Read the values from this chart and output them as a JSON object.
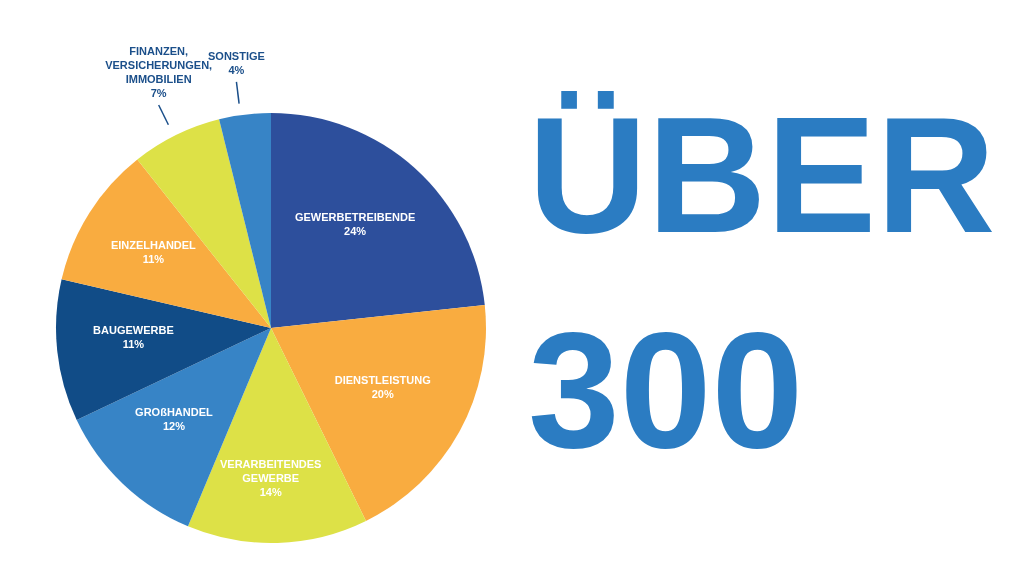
{
  "chart_data": {
    "type": "pie",
    "categories": [
      "GEWERBETREIBENDE",
      "DIENSTLEISTUNG",
      "VERARBEITENDES GEWERBE",
      "GROßHANDEL",
      "BAUGEWERBE",
      "EINZELHANDEL",
      "FINANZEN, VERSICHERUNGEN, IMMOBILIEN",
      "SONSTIGE"
    ],
    "values": [
      24,
      20,
      14,
      12,
      11,
      11,
      7,
      4
    ],
    "value_labels": [
      "24%",
      "20%",
      "14%",
      "12%",
      "11%",
      "11%",
      "7%",
      "4%"
    ],
    "colors": [
      "#2d4f9c",
      "#f9ac40",
      "#dde147",
      "#3784c6",
      "#114c87",
      "#f9ac40",
      "#dde147",
      "#3784c6"
    ],
    "annotations": [
      "ÜBER",
      "300"
    ]
  }
}
